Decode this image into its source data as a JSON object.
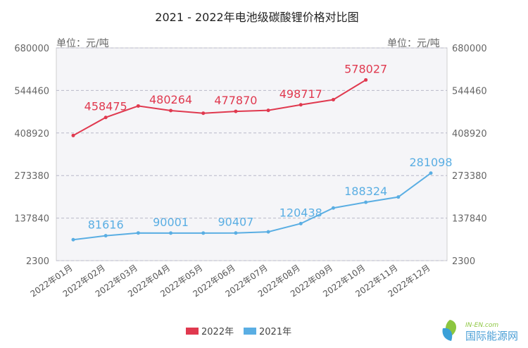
{
  "chart_data": {
    "type": "line",
    "title": "2021 - 2022年电池级碳酸锂价格对比图",
    "unit_left": "单位：元/吨",
    "unit_right": "单位：元/吨",
    "categories": [
      "2022年01月",
      "2022年02月",
      "2022年03月",
      "2022年04月",
      "2022年05月",
      "2022年06月",
      "2022年07月",
      "2022年08月",
      "2022年09月",
      "2022年10月",
      "2022年11月",
      "2022年12月"
    ],
    "ylim": [
      2300,
      680000
    ],
    "yticks": [
      "680000",
      "544460",
      "408920",
      "273380",
      "137840",
      "2300"
    ],
    "grid": true,
    "legend_position": "bottom",
    "series": [
      {
        "name": "2022年",
        "color": "#e0394f",
        "values": [
          401000,
          458475,
          495000,
          480264,
          472000,
          477870,
          481000,
          498717,
          515000,
          578027,
          null,
          null
        ],
        "labels": [
          "",
          "458475",
          "",
          "480264",
          "",
          "477870",
          "",
          "498717",
          "",
          "578027",
          "",
          ""
        ]
      },
      {
        "name": "2021年",
        "color": "#5aaee3",
        "values": [
          69000,
          81616,
          90500,
          90001,
          90000,
          90407,
          94000,
          120438,
          170000,
          188324,
          205000,
          281098
        ],
        "labels": [
          "",
          "81616",
          "",
          "90001",
          "",
          "90407",
          "",
          "120438",
          "",
          "188324",
          "",
          "281098"
        ]
      }
    ]
  },
  "watermark": {
    "brand": "IN-EN.com",
    "name": "国际能源网"
  }
}
